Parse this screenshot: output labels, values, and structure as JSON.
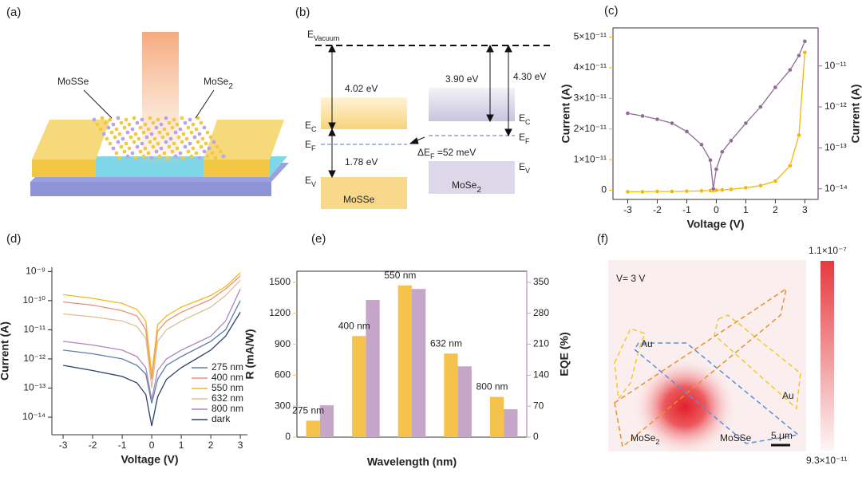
{
  "panel_a": {
    "label": "(a)",
    "mossse": "MoSSe",
    "mose2": {
      "text": "MoSe",
      "sub": "2"
    }
  },
  "panel_b": {
    "label": "(b)",
    "e_vacuum": {
      "text": "E",
      "sub": "Vacuum"
    },
    "mossse_affinity": "4.02 eV",
    "mose2_affinity": "3.90 eV",
    "mose2_workfunction": "4.30 eV",
    "mossse_ec": {
      "text": "E",
      "sub": "C"
    },
    "mossse_ef": {
      "text": "E",
      "sub": "F"
    },
    "mossse_gap": "1.78 eV",
    "mossse_ev": {
      "text": "E",
      "sub": "V"
    },
    "mossse_name": "MoSSe",
    "mose2_name": {
      "text": "MoSe",
      "sub": "2"
    },
    "mose2_ec": {
      "text": "E",
      "sub": "C"
    },
    "mose2_ef": {
      "text": "E",
      "sub": "F"
    },
    "mose2_ev": {
      "text": "E",
      "sub": "V"
    },
    "delta_ef": {
      "text": "ΔE",
      "sub": "F",
      "rest": " =52 meV"
    }
  },
  "panel_f": {
    "label": "(f)",
    "voltage": "V= 3 V",
    "au_left": "Au",
    "au_right": "Au",
    "mose2": {
      "text": "MoSe",
      "sub": "2"
    },
    "mossse": "MoSSe",
    "scale_bar": "5 μm",
    "colorbar_max": "1.1×10⁻⁷",
    "colorbar_min": "9.3×10⁻¹¹"
  },
  "chart_data": [
    {
      "type": "line",
      "label": "(c)",
      "xlabel": "Voltage (V)",
      "ylabel": "Current (A)",
      "y2label": "Current (A)",
      "frame": true,
      "x": [
        -3,
        -2.5,
        -2,
        -1.5,
        -1,
        -0.5,
        -0.2,
        -0.1,
        0,
        0.2,
        0.5,
        1,
        1.5,
        2,
        2.5,
        2.8,
        3
      ],
      "xlim": [
        -3.5,
        3.45
      ],
      "xticks": [
        -3,
        -2,
        -1,
        0,
        1,
        2,
        3
      ],
      "ylim": [
        -3e-12,
        5.3e-11
      ],
      "yticks": [
        0,
        {
          "value": 1e-11,
          "label": "1×10⁻¹¹"
        },
        {
          "value": 2e-11,
          "label": "2×10⁻¹¹"
        },
        {
          "value": 3e-11,
          "label": "3×10⁻¹¹"
        },
        {
          "value": 4e-11,
          "label": "4×10⁻¹¹"
        },
        {
          "value": 5e-11,
          "label": "5×10⁻¹¹"
        }
      ],
      "y2lim": [
        5.5e-15,
        8.5e-11
      ],
      "y2log": true,
      "y2ticks": [
        {
          "value": 1e-14,
          "label": "10⁻¹⁴"
        },
        {
          "value": 1e-13,
          "label": "10⁻¹³"
        },
        {
          "value": 1e-12,
          "label": "10⁻¹²"
        },
        {
          "value": 1e-11,
          "label": "10⁻¹¹"
        }
      ],
      "series": [
        {
          "color": "#f2b705",
          "marker": true,
          "values": [
            -5e-13,
            -5e-13,
            -4e-13,
            -4e-13,
            -3e-13,
            -2e-13,
            -1e-13,
            -1e-13,
            0,
            1e-13,
            3e-13,
            8e-13,
            1.5e-12,
            3e-12,
            8e-12,
            1.8e-11,
            4.5e-11
          ]
        },
        {
          "color": "#8e6a94",
          "marker": true,
          "axis": "y2",
          "values": [
            7e-13,
            6e-13,
            5e-13,
            4e-13,
            2.5e-13,
            1.2e-13,
            5e-14,
            1e-14,
            3e-14,
            8e-14,
            1.5e-13,
            4e-13,
            1e-12,
            3e-12,
            8e-12,
            1.8e-11,
            4e-11
          ]
        }
      ]
    },
    {
      "type": "line",
      "label": "(d)",
      "xlabel": "Voltage (V)",
      "ylabel": "Current (A)",
      "frame": false,
      "legend": "lower right",
      "x": [
        -3,
        -2,
        -1,
        -0.5,
        -0.2,
        0,
        0.2,
        0.5,
        1,
        2,
        2.5,
        3
      ],
      "xlim": [
        -3.38,
        3.24
      ],
      "xticks": [
        -3,
        -2,
        -1,
        0,
        1,
        2,
        3
      ],
      "ylim": [
        2.5e-15,
        1.4e-09
      ],
      "ylog": true,
      "yticks": [
        {
          "value": 1e-14,
          "label": "10⁻¹⁴"
        },
        {
          "value": 1e-13,
          "label": "10⁻¹³"
        },
        {
          "value": 1e-12,
          "label": "10⁻¹²"
        },
        {
          "value": 1e-11,
          "label": "10⁻¹¹"
        },
        {
          "value": 1e-10,
          "label": "10⁻¹⁰"
        },
        {
          "value": 1e-09,
          "label": "10⁻⁹"
        }
      ],
      "series": [
        {
          "name": "275 nm",
          "color": "#5b7fa8",
          "values": [
            2e-12,
            1.5e-12,
            1e-12,
            6e-13,
            3e-13,
            3e-14,
            2e-13,
            6e-13,
            1.2e-12,
            4e-12,
            1e-11,
            1e-10
          ]
        },
        {
          "name": "400 nm",
          "color": "#e8907a",
          "values": [
            9e-11,
            7e-11,
            4.5e-11,
            3e-11,
            1e-11,
            2e-13,
            9e-12,
            2e-11,
            4e-11,
            1.1e-10,
            2.5e-10,
            7e-10
          ]
        },
        {
          "name": "550 nm",
          "color": "#f2b81c",
          "values": [
            1.6e-10,
            1.2e-10,
            8e-11,
            5e-11,
            2e-11,
            3e-13,
            1.5e-11,
            3e-11,
            6e-11,
            1.5e-10,
            3e-10,
            9e-10
          ]
        },
        {
          "name": "632 nm",
          "color": "#e0bf90",
          "values": [
            3.5e-11,
            2.8e-11,
            2e-11,
            1.3e-11,
            5e-12,
            1e-13,
            4e-12,
            1e-11,
            2e-11,
            6e-11,
            1.5e-10,
            5e-10
          ]
        },
        {
          "name": "800 nm",
          "color": "#a888c0",
          "values": [
            4e-12,
            3e-12,
            2e-12,
            1.2e-12,
            5e-13,
            4e-14,
            4e-13,
            1e-12,
            2e-12,
            6e-12,
            2e-11,
            2.5e-10
          ]
        },
        {
          "name": "dark",
          "color": "#2e3f6e",
          "values": [
            6e-13,
            4e-13,
            2.5e-13,
            1.5e-13,
            6e-14,
            5e-15,
            5e-14,
            2e-13,
            5e-13,
            2e-12,
            6e-12,
            4e-11
          ]
        }
      ]
    },
    {
      "type": "bar",
      "label": "(e)",
      "xlabel": "Wavelength (nm)",
      "ylabel": "R (mA/W)",
      "y2label": "EQE (%)",
      "frame": true,
      "categories": [
        "275 nm",
        "400 nm",
        "550 nm",
        "632 nm",
        "800 nm"
      ],
      "ylim": [
        0,
        1608
      ],
      "yticks": [
        0,
        300,
        600,
        900,
        1200,
        1500
      ],
      "y2lim": [
        0,
        375
      ],
      "y2ticks": [
        0,
        70,
        140,
        210,
        280,
        350
      ],
      "series": [
        {
          "color": "#f5c24c",
          "values": [
            160,
            980,
            1470,
            810,
            390
          ]
        },
        {
          "color": "#c6a6c8",
          "axis": "y2",
          "values": [
            72,
            310,
            335,
            160,
            63
          ]
        }
      ]
    }
  ]
}
